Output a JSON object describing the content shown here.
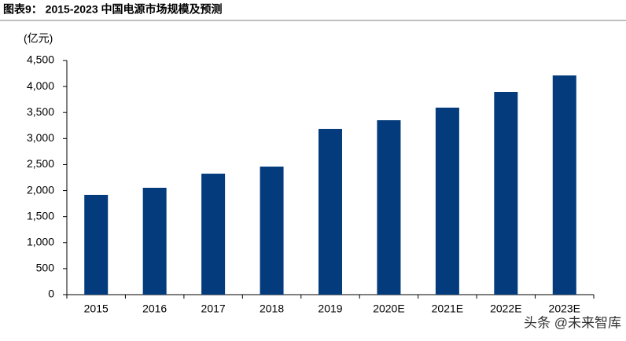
{
  "chart_data": {
    "type": "bar",
    "title": "图表9：  2015-2023 中国电源市场规模及预测",
    "y_label": "(亿元)",
    "watermark": "头条 @未来智库",
    "categories": [
      "2015",
      "2016",
      "2017",
      "2018",
      "2019",
      "2020E",
      "2021E",
      "2022E",
      "2023E"
    ],
    "values": [
      1918,
      2054,
      2325,
      2461,
      3186,
      3352,
      3594,
      3896,
      4213
    ],
    "color": "#033b7c",
    "ylim": [
      0,
      4500
    ],
    "yticks": [
      0,
      500,
      {
        "value": 1000,
        "label": "1,000"
      },
      {
        "value": 1500,
        "label": "1,500"
      },
      {
        "value": 2000,
        "label": "2,000"
      },
      {
        "value": 2500,
        "label": "2,500"
      },
      {
        "value": 3000,
        "label": "3,000"
      },
      {
        "value": 3500,
        "label": "3,500"
      },
      {
        "value": 4000,
        "label": "4,000"
      },
      {
        "value": 4500,
        "label": "4,500"
      }
    ],
    "grid": false
  }
}
